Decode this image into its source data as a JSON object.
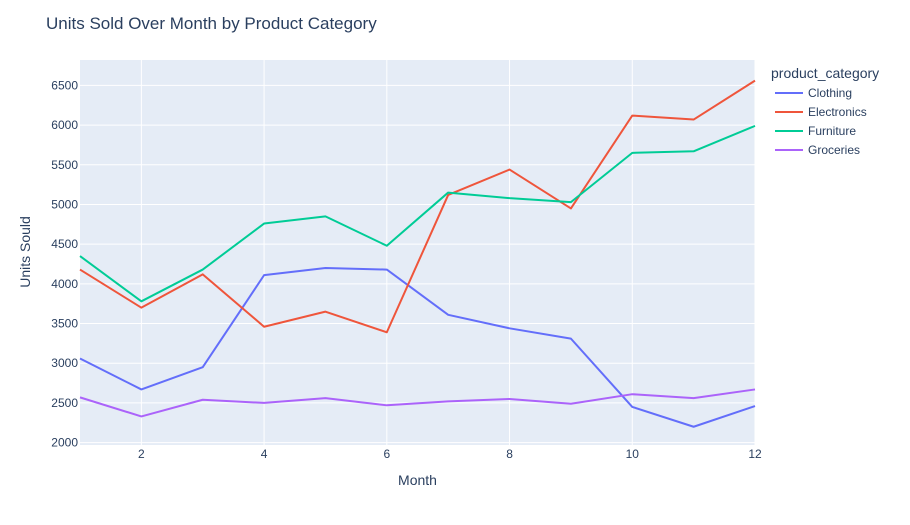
{
  "chart_data": {
    "type": "line",
    "title": "Units Sold Over Month by Product Category",
    "xlabel": "Month",
    "ylabel": "Units Sould",
    "x": [
      1,
      2,
      3,
      4,
      5,
      6,
      7,
      8,
      9,
      10,
      11,
      12
    ],
    "xlim": [
      1,
      12
    ],
    "ylim": [
      1970,
      6820
    ],
    "xticks": [
      2,
      4,
      6,
      8,
      10,
      12
    ],
    "yticks": [
      2000,
      2500,
      3000,
      3500,
      4000,
      4500,
      5000,
      5500,
      6000,
      6500
    ],
    "grid": true,
    "legend_title": "product_category",
    "legend_position": "right",
    "series": [
      {
        "name": "Clothing",
        "color": "#636efa",
        "values": [
          3060,
          2670,
          2950,
          4110,
          4200,
          4180,
          3610,
          3440,
          3310,
          2450,
          2200,
          2460
        ]
      },
      {
        "name": "Electronics",
        "color": "#ef553b",
        "values": [
          4180,
          3700,
          4120,
          3460,
          3650,
          3390,
          5120,
          5440,
          4950,
          6120,
          6070,
          6560
        ]
      },
      {
        "name": "Furniture",
        "color": "#00cc96",
        "values": [
          4350,
          3780,
          4180,
          4760,
          4850,
          4480,
          5150,
          5080,
          5030,
          5650,
          5670,
          5990
        ]
      },
      {
        "name": "Groceries",
        "color": "#ab63fa",
        "values": [
          2570,
          2330,
          2540,
          2500,
          2560,
          2470,
          2520,
          2550,
          2490,
          2610,
          2560,
          2670
        ]
      }
    ]
  }
}
